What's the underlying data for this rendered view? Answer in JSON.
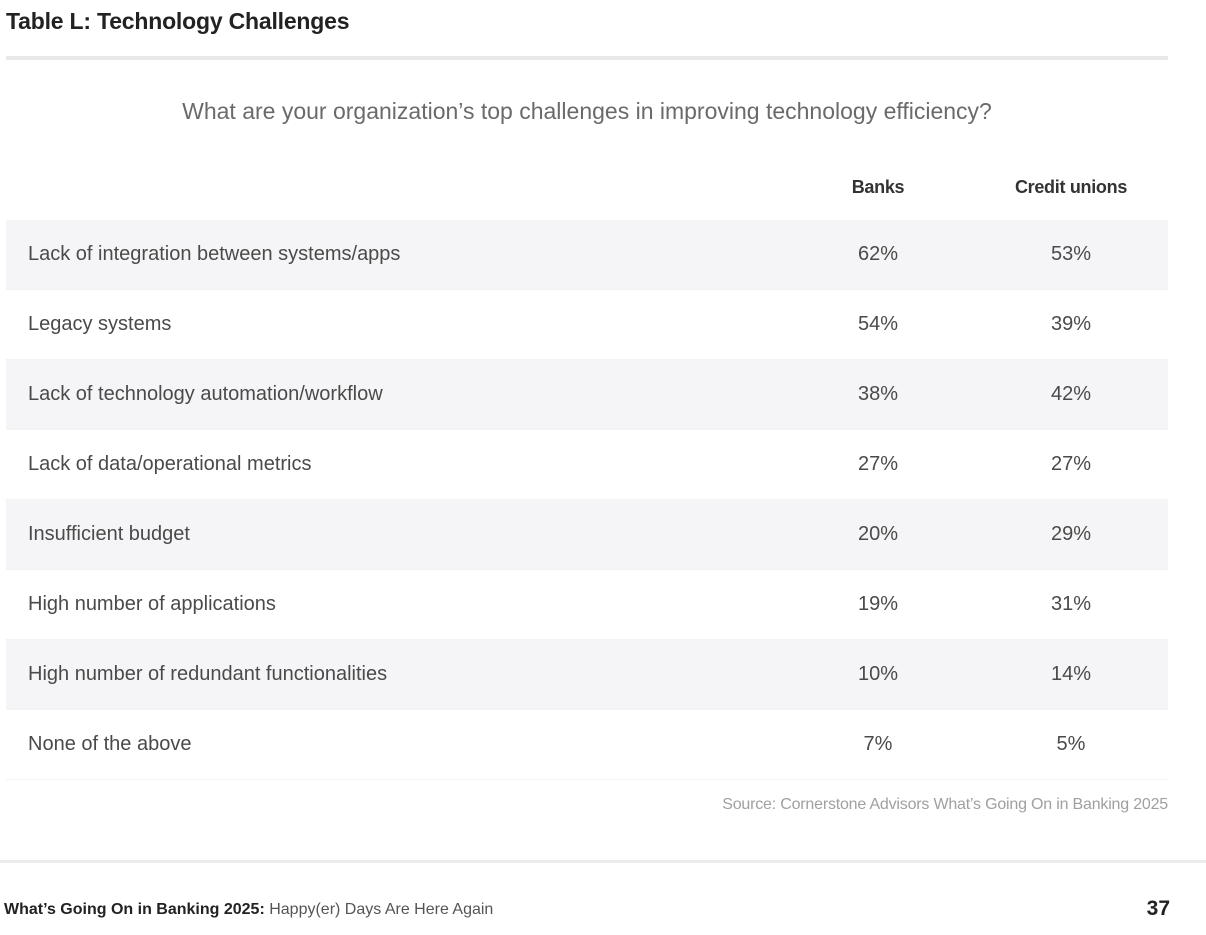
{
  "title": "Table L: Technology Challenges",
  "question": "What are your organization’s top challenges in improving technology efficiency?",
  "columns": {
    "banks": "Banks",
    "credit_unions": "Credit unions"
  },
  "rows": [
    {
      "label": "Lack of integration between systems/apps",
      "banks": "62%",
      "credit_unions": "53%"
    },
    {
      "label": "Legacy systems",
      "banks": "54%",
      "credit_unions": "39%"
    },
    {
      "label": "Lack of technology automation/workflow",
      "banks": "38%",
      "credit_unions": "42%"
    },
    {
      "label": "Lack of data/operational metrics",
      "banks": "27%",
      "credit_unions": "27%"
    },
    {
      "label": "Insufficient budget",
      "banks": "20%",
      "credit_unions": "29%"
    },
    {
      "label": "High number of applications",
      "banks": "19%",
      "credit_unions": "31%"
    },
    {
      "label": "High number of redundant functionalities",
      "banks": "10%",
      "credit_unions": "14%"
    },
    {
      "label": "None of the above",
      "banks": "7%",
      "credit_unions": "5%"
    }
  ],
  "source": "Source: Cornerstone Advisors What’s Going On in Banking 2025",
  "footer": {
    "report_name": "What’s Going On in Banking 2025:",
    "subtitle": "Happy(er) Days Are Here Again",
    "page_number": "37"
  }
}
